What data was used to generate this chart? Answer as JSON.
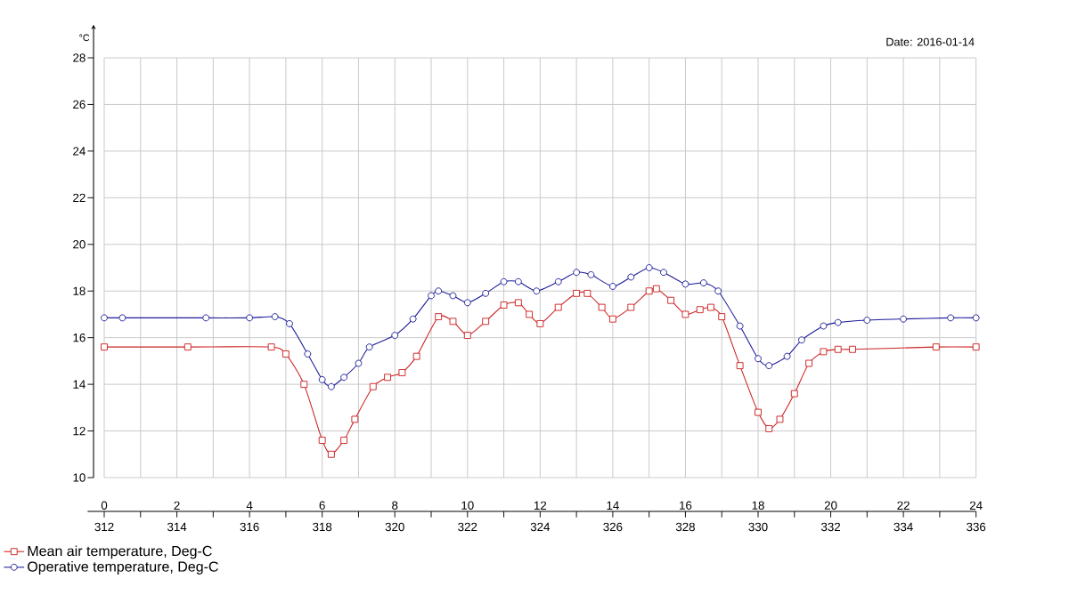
{
  "chart_data": {
    "type": "line",
    "ylabel": "°C",
    "annotations": [
      "Date: 2016-01-14"
    ],
    "xlim": [
      0,
      24
    ],
    "xticks": [
      0,
      2,
      4,
      6,
      8,
      10,
      12,
      14,
      16,
      18,
      20,
      22,
      24
    ],
    "x2lim": [
      312,
      336
    ],
    "x2ticks": [
      312,
      314,
      316,
      318,
      320,
      322,
      324,
      326,
      328,
      330,
      332,
      334,
      336
    ],
    "ylim": [
      10,
      28
    ],
    "yticks": [
      10,
      12,
      14,
      16,
      18,
      20,
      22,
      24,
      26,
      28
    ],
    "grid": true,
    "legend": "bottom left",
    "series": [
      {
        "name": "Mean air temperature, Deg-C",
        "color": "#cc2222",
        "marker": "square",
        "x": [
          0,
          2.3,
          4.6,
          5.0,
          5.5,
          6.0,
          6.25,
          6.6,
          6.9,
          7.4,
          7.8,
          8.2,
          8.6,
          9.2,
          9.6,
          10.0,
          10.5,
          11.0,
          11.4,
          11.7,
          12.0,
          12.5,
          13.0,
          13.3,
          13.7,
          14.0,
          14.5,
          15.0,
          15.2,
          15.6,
          16.0,
          16.4,
          16.7,
          17.0,
          17.5,
          18.0,
          18.3,
          18.6,
          19.0,
          19.4,
          19.8,
          20.2,
          20.6,
          22.9,
          24
        ],
        "values": [
          15.6,
          15.6,
          15.6,
          15.3,
          14.0,
          11.6,
          11.0,
          11.6,
          12.5,
          13.9,
          14.3,
          14.5,
          15.2,
          16.9,
          16.7,
          16.1,
          16.7,
          17.4,
          17.5,
          17.0,
          16.6,
          17.3,
          17.9,
          17.9,
          17.3,
          16.8,
          17.3,
          18.0,
          18.1,
          17.6,
          17.0,
          17.2,
          17.3,
          16.9,
          14.8,
          12.8,
          12.1,
          12.5,
          13.6,
          14.9,
          15.4,
          15.5,
          15.5,
          15.6,
          15.6
        ]
      },
      {
        "name": "Operative temperature, Deg-C",
        "color": "#1a1a99",
        "marker": "circle",
        "x": [
          0,
          0.5,
          2.8,
          4.0,
          4.7,
          5.1,
          5.6,
          6.0,
          6.25,
          6.6,
          7.0,
          7.3,
          8.0,
          8.5,
          9.0,
          9.2,
          9.6,
          10.0,
          10.5,
          11.0,
          11.4,
          11.9,
          12.5,
          13.0,
          13.4,
          14.0,
          14.5,
          15.0,
          15.4,
          16.0,
          16.5,
          16.9,
          17.5,
          18.0,
          18.3,
          18.8,
          19.2,
          19.8,
          20.2,
          21.0,
          22.0,
          23.3,
          24
        ],
        "values": [
          16.85,
          16.85,
          16.85,
          16.85,
          16.9,
          16.6,
          15.3,
          14.2,
          13.9,
          14.3,
          14.9,
          15.6,
          16.1,
          16.8,
          17.8,
          18.0,
          17.8,
          17.5,
          17.9,
          18.4,
          18.4,
          18.0,
          18.4,
          18.8,
          18.7,
          18.2,
          18.6,
          19.0,
          18.8,
          18.3,
          18.35,
          18.0,
          16.5,
          15.1,
          14.8,
          15.2,
          15.9,
          16.5,
          16.65,
          16.75,
          16.8,
          16.85,
          16.85
        ]
      }
    ]
  }
}
